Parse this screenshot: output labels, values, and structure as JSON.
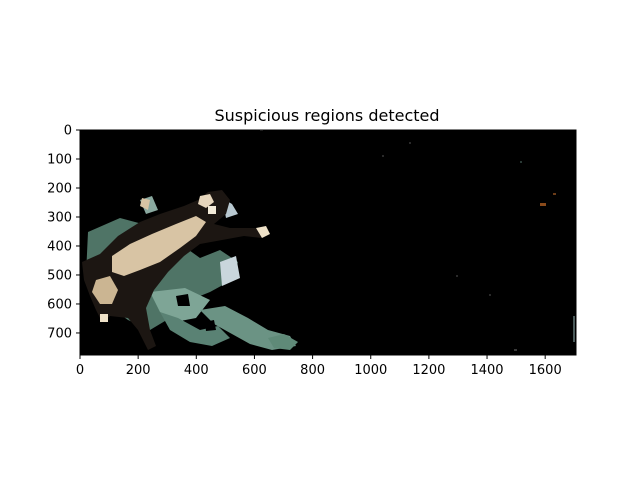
{
  "title": "Suspicious regions detected",
  "axes": {
    "x_ticks": [
      "0",
      "200",
      "400",
      "600",
      "800",
      "1000",
      "1200",
      "1400",
      "1600"
    ],
    "y_ticks": [
      "0",
      "100",
      "200",
      "300",
      "400",
      "500",
      "600",
      "700"
    ],
    "x_range": [
      0,
      1706
    ],
    "y_range": [
      0,
      776
    ],
    "y_inverted": true
  },
  "image": {
    "background_color": "#000000",
    "content": "masked-photo-cat"
  },
  "colors": {
    "cat_dark": "#1c1612",
    "cat_light": "#d8c4a4",
    "foliage": "#5f8a78",
    "sky": "#b8c8d0"
  }
}
